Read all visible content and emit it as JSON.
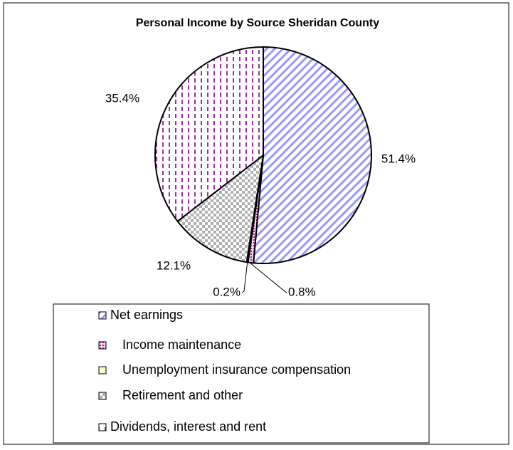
{
  "chart_data": {
    "type": "pie",
    "title": "Personal Income by Source Sheridan County",
    "categories": [
      "Net earnings",
      "Income maintenance",
      "Unemployment insurance compensation",
      "Retirement and other",
      "Dividends, interest and rent"
    ],
    "values": [
      51.4,
      0.8,
      0.2,
      12.1,
      35.4
    ],
    "value_labels": [
      "51.4%",
      "0.8%",
      "0.2%",
      "12.1%",
      "35.4%"
    ],
    "colors": [
      "#9999ff",
      "#993366",
      "#ffffcc",
      "#b0b0b0",
      "#993399"
    ]
  }
}
